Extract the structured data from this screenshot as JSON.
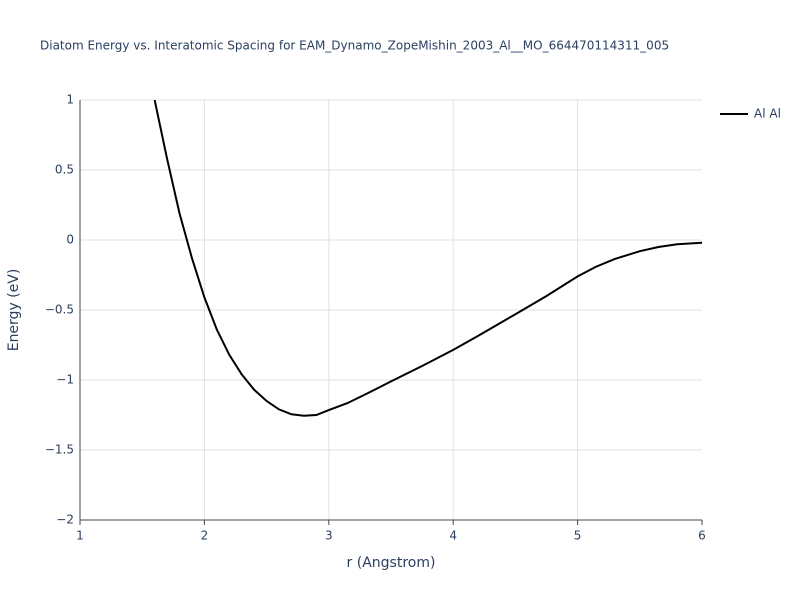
{
  "chart_data": {
    "type": "line",
    "title": "Diatom Energy vs. Interatomic Spacing for EAM_Dynamo_ZopeMishin_2003_Al__MO_664470114311_005",
    "x_label": "r (Angstrom)",
    "y_label": "Energy (eV)",
    "x": [
      1.6,
      1.7,
      1.8,
      1.9,
      2.0,
      2.1,
      2.2,
      2.3,
      2.4,
      2.5,
      2.6,
      2.7,
      2.8,
      2.9,
      3.0,
      3.15,
      3.3,
      3.5,
      3.75,
      4.0,
      4.2,
      4.5,
      4.75,
      5.0,
      5.15,
      5.3,
      5.5,
      5.65,
      5.8,
      6.0
    ],
    "series": [
      {
        "name": "Al Al",
        "color": "#000000",
        "values": [
          1.0,
          0.58,
          0.19,
          -0.13,
          -0.41,
          -0.64,
          -0.82,
          -0.96,
          -1.07,
          -1.15,
          -1.21,
          -1.245,
          -1.255,
          -1.25,
          -1.215,
          -1.165,
          -1.1,
          -1.01,
          -0.9,
          -0.785,
          -0.685,
          -0.53,
          -0.4,
          -0.26,
          -0.19,
          -0.135,
          -0.08,
          -0.05,
          -0.03,
          -0.02
        ]
      }
    ],
    "xlim": [
      1,
      6
    ],
    "xticks": [
      1,
      2,
      3,
      4,
      5,
      6
    ],
    "ylim": [
      -2,
      1
    ],
    "yticks": [
      {
        "value": -2,
        "label": "−2"
      },
      {
        "value": -1.5,
        "label": "−1.5"
      },
      {
        "value": -1,
        "label": "−1"
      },
      {
        "value": -0.5,
        "label": "−0.5"
      },
      0,
      0.5,
      1
    ],
    "grid": true,
    "legend": "right"
  }
}
